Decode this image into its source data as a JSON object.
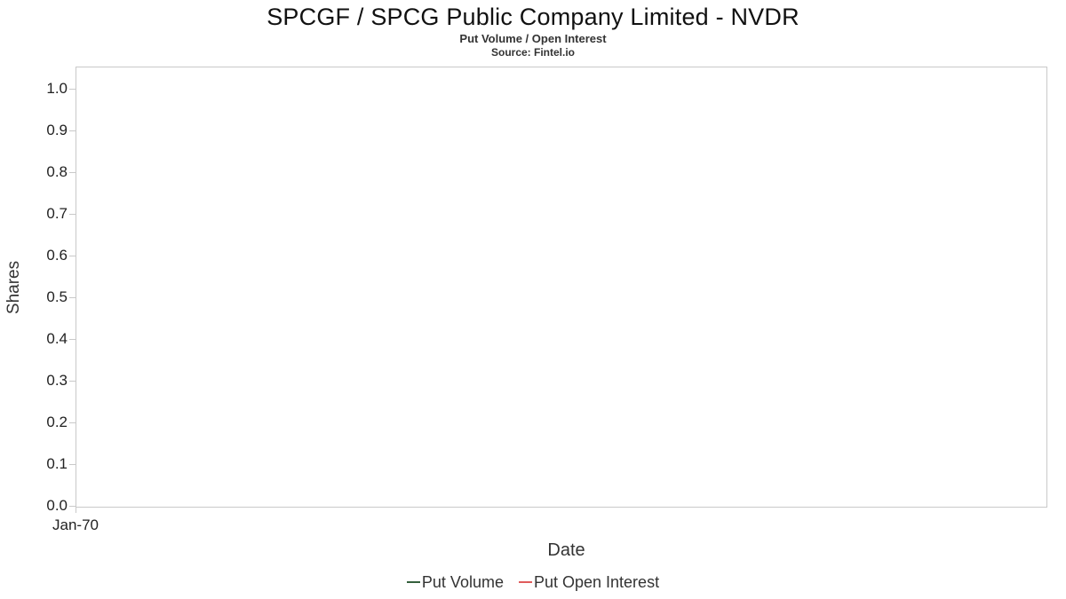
{
  "header": {
    "title": "SPCGF / SPCG Public Company Limited - NVDR",
    "subtitle": "Put Volume / Open Interest",
    "source": "Source: Fintel.io"
  },
  "chart": {
    "ylabel": "Shares",
    "xlabel": "Date",
    "x_tick_labels": [
      "Jan-70"
    ],
    "y_tick_labels": [
      "1.0",
      "0.9",
      "0.8",
      "0.7",
      "0.6",
      "0.5",
      "0.4",
      "0.3",
      "0.2",
      "0.1",
      "0.0"
    ]
  },
  "legend": [
    {
      "label": "Put Volume",
      "color": "#35603c"
    },
    {
      "label": "Put Open Interest",
      "color": "#e05c5c"
    }
  ],
  "chart_data": {
    "type": "line",
    "title": "SPCGF / SPCG Public Company Limited - NVDR",
    "subtitle": "Put Volume / Open Interest",
    "source": "Source: Fintel.io",
    "xlabel": "Date",
    "ylabel": "Shares",
    "ylim": [
      0.0,
      1.0
    ],
    "yticks": [
      0.0,
      0.1,
      0.2,
      0.3,
      0.4,
      0.5,
      0.6,
      0.7,
      0.8,
      0.9,
      1.0
    ],
    "x": [
      "Jan-70"
    ],
    "series": [
      {
        "name": "Put Volume",
        "color": "#35603c",
        "values": []
      },
      {
        "name": "Put Open Interest",
        "color": "#e05c5c",
        "values": []
      }
    ],
    "grid": false,
    "legend_position": "bottom"
  }
}
